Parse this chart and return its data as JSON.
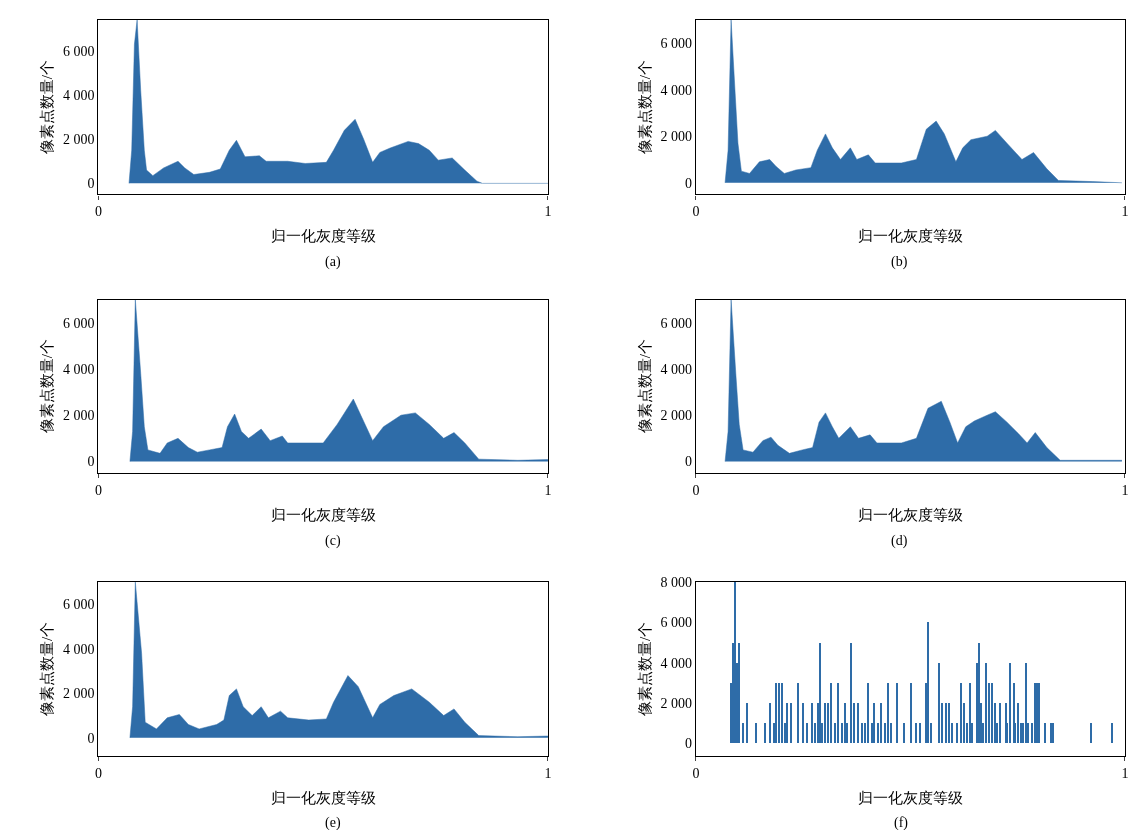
{
  "chart_data": [
    {
      "type": "area",
      "xlabel": "归一化灰度等级",
      "ylabel": "像素点数量/个",
      "annotations": [
        "(a)"
      ],
      "xlim": [
        0,
        1
      ],
      "ylim": [
        -500,
        7400
      ],
      "xticks": [
        0,
        1
      ],
      "yticks": [
        0,
        {
          "value": 2000,
          "label": "2 000"
        },
        {
          "value": 4000,
          "label": "4 000"
        },
        {
          "value": 6000,
          "label": "6 000"
        }
      ],
      "series": [
        {
          "color": "#2e6ca8",
          "x": [
            0.068,
            0.074,
            0.08,
            0.086,
            0.094,
            0.102,
            0.107,
            0.121,
            0.145,
            0.177,
            0.192,
            0.212,
            0.247,
            0.271,
            0.291,
            0.307,
            0.326,
            0.358,
            0.373,
            0.421,
            0.46,
            0.507,
            0.523,
            0.547,
            0.571,
            0.59,
            0.61,
            0.626,
            0.649,
            0.689,
            0.712,
            0.736,
            0.756,
            0.787,
            0.815,
            0.842,
            0.854,
            1.0
          ],
          "values": [
            0,
            1500,
            6300,
            7400,
            4200,
            1500,
            600,
            350,
            700,
            1000,
            700,
            400,
            500,
            650,
            1500,
            1950,
            1200,
            1250,
            1000,
            1000,
            900,
            950,
            1500,
            2400,
            2900,
            2000,
            950,
            1400,
            1600,
            1900,
            1800,
            1500,
            1050,
            1150,
            600,
            100,
            0,
            0
          ]
        }
      ]
    },
    {
      "type": "area",
      "xlabel": "归一化灰度等级",
      "ylabel": "像素点数量/个",
      "annotations": [
        "(b)"
      ],
      "xlim": [
        0,
        1
      ],
      "ylim": [
        -500,
        7000
      ],
      "xticks": [
        0,
        1
      ],
      "yticks": [
        0,
        {
          "value": 2000,
          "label": "2 000"
        },
        {
          "value": 4000,
          "label": "4 000"
        },
        {
          "value": 6000,
          "label": "6 000"
        }
      ],
      "series": [
        {
          "color": "#2e6ca8",
          "x": [
            0.068,
            0.075,
            0.082,
            0.091,
            0.098,
            0.106,
            0.125,
            0.148,
            0.172,
            0.187,
            0.206,
            0.233,
            0.268,
            0.283,
            0.302,
            0.318,
            0.337,
            0.36,
            0.375,
            0.402,
            0.418,
            0.479,
            0.514,
            0.537,
            0.56,
            0.579,
            0.606,
            0.622,
            0.641,
            0.679,
            0.698,
            0.725,
            0.76,
            0.787,
            0.818,
            0.845,
            0.925,
            0.993
          ],
          "values": [
            0,
            1400,
            7000,
            4000,
            1700,
            500,
            400,
            900,
            1000,
            700,
            400,
            550,
            650,
            1400,
            2100,
            1500,
            1000,
            1500,
            1000,
            1200,
            850,
            850,
            1000,
            2300,
            2650,
            2100,
            900,
            1500,
            1850,
            2000,
            2250,
            1700,
            1000,
            1300,
            600,
            100,
            50,
            0
          ]
        }
      ]
    },
    {
      "type": "area",
      "xlabel": "归一化灰度等级",
      "ylabel": "像素点数量/个",
      "annotations": [
        "(c)"
      ],
      "xlim": [
        0,
        1
      ],
      "ylim": [
        -500,
        7000
      ],
      "xticks": [
        0,
        1
      ],
      "yticks": [
        0,
        {
          "value": 2000,
          "label": "2 000"
        },
        {
          "value": 4000,
          "label": "4 000"
        },
        {
          "value": 6000,
          "label": "6 000"
        }
      ],
      "series": [
        {
          "color": "#2e6ca8",
          "x": [
            0.07,
            0.076,
            0.082,
            0.094,
            0.102,
            0.11,
            0.137,
            0.153,
            0.177,
            0.2,
            0.22,
            0.247,
            0.275,
            0.287,
            0.303,
            0.318,
            0.334,
            0.362,
            0.382,
            0.409,
            0.421,
            0.5,
            0.531,
            0.567,
            0.586,
            0.61,
            0.634,
            0.673,
            0.705,
            0.736,
            0.768,
            0.791,
            0.815,
            0.846,
            0.933,
            1.0
          ],
          "values": [
            0,
            1300,
            7000,
            3800,
            1500,
            500,
            350,
            800,
            1000,
            600,
            400,
            500,
            600,
            1500,
            2050,
            1300,
            1000,
            1400,
            900,
            1100,
            800,
            800,
            1600,
            2700,
            1900,
            900,
            1500,
            2000,
            2100,
            1600,
            1000,
            1250,
            800,
            100,
            50,
            80
          ]
        }
      ]
    },
    {
      "type": "area",
      "xlabel": "归一化灰度等级",
      "ylabel": "像素点数量/个",
      "annotations": [
        "(d)"
      ],
      "xlim": [
        0,
        1
      ],
      "ylim": [
        -500,
        7000
      ],
      "xticks": [
        0,
        1
      ],
      "yticks": [
        0,
        {
          "value": 2000,
          "label": "2 000"
        },
        {
          "value": 4000,
          "label": "4 000"
        },
        {
          "value": 6000,
          "label": "6 000"
        }
      ],
      "series": [
        {
          "color": "#2e6ca8",
          "x": [
            0.068,
            0.075,
            0.082,
            0.093,
            0.101,
            0.11,
            0.133,
            0.156,
            0.175,
            0.191,
            0.218,
            0.248,
            0.272,
            0.287,
            0.302,
            0.318,
            0.333,
            0.36,
            0.379,
            0.406,
            0.422,
            0.479,
            0.514,
            0.541,
            0.572,
            0.592,
            0.61,
            0.629,
            0.649,
            0.679,
            0.698,
            0.725,
            0.752,
            0.772,
            0.791,
            0.818,
            0.849,
            0.925,
            0.993
          ],
          "values": [
            0,
            1300,
            7000,
            3800,
            1600,
            500,
            400,
            900,
            1050,
            700,
            350,
            500,
            600,
            1700,
            2100,
            1500,
            1000,
            1500,
            1000,
            1150,
            800,
            800,
            1000,
            2300,
            2600,
            1700,
            800,
            1500,
            1750,
            2000,
            2150,
            1700,
            1200,
            800,
            1250,
            600,
            50,
            50,
            50
          ]
        }
      ]
    },
    {
      "type": "area",
      "xlabel": "归一化灰度等级",
      "ylabel": "像素点数量/个",
      "annotations": [
        "(e)"
      ],
      "xlim": [
        0,
        1
      ],
      "ylim": [
        -800,
        7000
      ],
      "xticks": [
        0,
        1
      ],
      "yticks": [
        0,
        {
          "value": 2000,
          "label": "2 000"
        },
        {
          "value": 4000,
          "label": "4 000"
        },
        {
          "value": 6000,
          "label": "6 000"
        }
      ],
      "series": [
        {
          "color": "#2e6ca8",
          "x": [
            0.07,
            0.076,
            0.082,
            0.096,
            0.104,
            0.129,
            0.153,
            0.18,
            0.2,
            0.224,
            0.263,
            0.279,
            0.291,
            0.307,
            0.322,
            0.342,
            0.362,
            0.378,
            0.405,
            0.421,
            0.468,
            0.507,
            0.523,
            0.555,
            0.578,
            0.61,
            0.626,
            0.657,
            0.697,
            0.736,
            0.768,
            0.791,
            0.815,
            0.846,
            0.933,
            1.0
          ],
          "values": [
            0,
            1400,
            7000,
            3800,
            700,
            400,
            900,
            1050,
            600,
            400,
            600,
            800,
            1900,
            2200,
            1400,
            1000,
            1400,
            900,
            1200,
            900,
            800,
            850,
            1600,
            2800,
            2300,
            900,
            1500,
            1900,
            2200,
            1600,
            1000,
            1300,
            700,
            100,
            50,
            80
          ]
        }
      ]
    },
    {
      "type": "bar",
      "xlabel": "归一化灰度等级",
      "ylabel": "像素点数量/个",
      "annotations": [
        "(f)"
      ],
      "xlim": [
        0,
        1
      ],
      "ylim": [
        -600,
        8000
      ],
      "xticks": [
        0,
        1
      ],
      "yticks": [
        0,
        {
          "value": 2000,
          "label": "2 000"
        },
        {
          "value": 4000,
          "label": "4 000"
        },
        {
          "value": 6000,
          "label": "6 000"
        },
        {
          "value": 8000,
          "label": "8 000"
        }
      ],
      "series": [
        {
          "color": "#2e6ca8",
          "x": [
            0.081,
            0.087,
            0.091,
            0.095,
            0.1,
            0.11,
            0.12,
            0.141,
            0.162,
            0.172,
            0.183,
            0.188,
            0.195,
            0.202,
            0.208,
            0.213,
            0.223,
            0.239,
            0.25,
            0.26,
            0.27,
            0.279,
            0.285,
            0.29,
            0.295,
            0.302,
            0.308,
            0.316,
            0.325,
            0.332,
            0.341,
            0.347,
            0.352,
            0.362,
            0.368,
            0.378,
            0.387,
            0.395,
            0.402,
            0.41,
            0.416,
            0.424,
            0.432,
            0.441,
            0.449,
            0.455,
            0.47,
            0.485,
            0.501,
            0.514,
            0.522,
            0.537,
            0.542,
            0.548,
            0.568,
            0.575,
            0.583,
            0.591,
            0.598,
            0.608,
            0.618,
            0.626,
            0.632,
            0.639,
            0.645,
            0.655,
            0.661,
            0.665,
            0.67,
            0.677,
            0.683,
            0.691,
            0.697,
            0.702,
            0.708,
            0.722,
            0.725,
            0.732,
            0.741,
            0.745,
            0.751,
            0.759,
            0.762,
            0.769,
            0.775,
            0.783,
            0.79,
            0.795,
            0.8,
            0.814,
            0.827,
            0.833,
            0.921,
            0.971
          ],
          "values": [
            3000,
            5000,
            8000,
            4000,
            5000,
            1000,
            2000,
            1000,
            1000,
            2000,
            1000,
            3000,
            3000,
            3000,
            1000,
            2000,
            2000,
            3000,
            2000,
            1000,
            2000,
            1000,
            2000,
            5000,
            1000,
            2000,
            2000,
            3000,
            1000,
            3000,
            1000,
            2000,
            1000,
            5000,
            2000,
            2000,
            1000,
            1000,
            3000,
            1000,
            2000,
            1000,
            2000,
            1000,
            3000,
            1000,
            3000,
            1000,
            3000,
            1000,
            1000,
            3000,
            6000,
            1000,
            4000,
            2000,
            2000,
            2000,
            1000,
            1000,
            3000,
            2000,
            1000,
            3000,
            1000,
            4000,
            5000,
            2000,
            1000,
            4000,
            3000,
            3000,
            2000,
            1000,
            2000,
            2000,
            1000,
            4000,
            3000,
            1000,
            2000,
            1000,
            1000,
            4000,
            1000,
            1000,
            3000,
            3000,
            3000,
            1000,
            1000,
            1000,
            1000,
            1000
          ]
        }
      ]
    }
  ]
}
